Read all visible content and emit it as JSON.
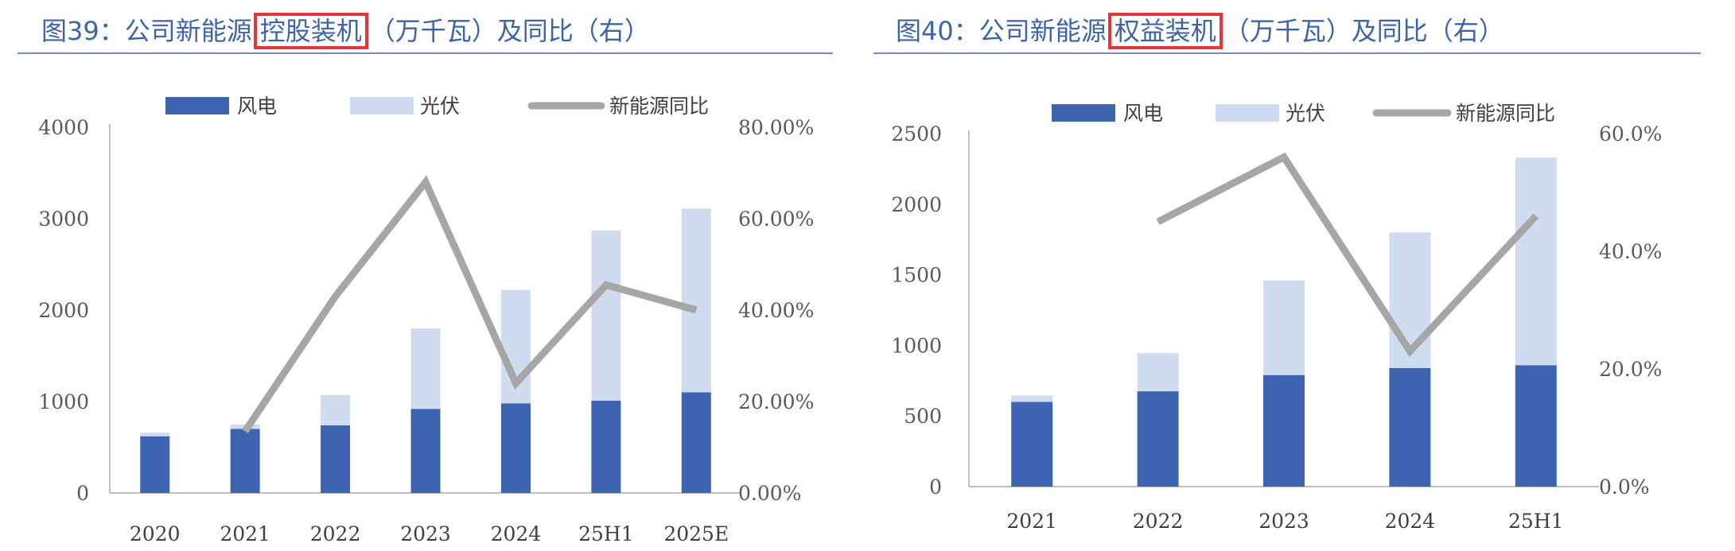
{
  "figures": [
    {
      "caption_prefix": "图39：公司新能源",
      "caption_highlight": "控股装机",
      "caption_suffix": "（万千瓦）及同比（右）"
    },
    {
      "caption_prefix": "图40：公司新能源",
      "caption_highlight": "权益装机",
      "caption_suffix": "（万千瓦）及同比（右）"
    }
  ],
  "colors": {
    "wind": "#3c64b0",
    "solar": "#cfdcf0",
    "yoy": "#a6a6a6",
    "caption": "#3d63a8",
    "highlight_box": "#e5343a"
  },
  "chart_data": [
    {
      "type": "bar",
      "stacked": true,
      "categories": [
        "2020",
        "2021",
        "2022",
        "2023",
        "2024",
        "25H1",
        "2025E"
      ],
      "series": [
        {
          "name": "风电",
          "values": [
            620,
            700,
            740,
            920,
            980,
            1010,
            1100
          ]
        },
        {
          "name": "光伏",
          "values": [
            40,
            50,
            330,
            880,
            1240,
            1860,
            2010
          ]
        }
      ],
      "line_series": {
        "name": "新能源同比",
        "axis": "right",
        "values": [
          null,
          0.135,
          0.43,
          0.68,
          0.24,
          0.455,
          0.4
        ]
      },
      "ylim": [
        0,
        4000
      ],
      "yticks": [
        "0",
        "1000",
        "2000",
        "3000",
        "4000"
      ],
      "y2lim": [
        0,
        0.8
      ],
      "y2ticks": [
        "0.00%",
        "20.00%",
        "40.00%",
        "60.00%",
        "80.00%"
      ],
      "legend_position": "top"
    },
    {
      "type": "bar",
      "stacked": true,
      "categories": [
        "2021",
        "2022",
        "2023",
        "2024",
        "25H1"
      ],
      "series": [
        {
          "name": "风电",
          "values": [
            600,
            675,
            790,
            840,
            860
          ]
        },
        {
          "name": "光伏",
          "values": [
            45,
            270,
            670,
            960,
            1470
          ]
        }
      ],
      "line_series": {
        "name": "新能源同比",
        "axis": "right",
        "values": [
          null,
          0.45,
          0.56,
          0.23,
          0.46
        ]
      },
      "ylim": [
        0,
        2500
      ],
      "yticks": [
        "0",
        "500",
        "1000",
        "1500",
        "2000",
        "2500"
      ],
      "y2lim": [
        0,
        0.6
      ],
      "y2ticks": [
        "0.0%",
        "20.0%",
        "40.0%",
        "60.0%"
      ],
      "legend_position": "top"
    }
  ]
}
